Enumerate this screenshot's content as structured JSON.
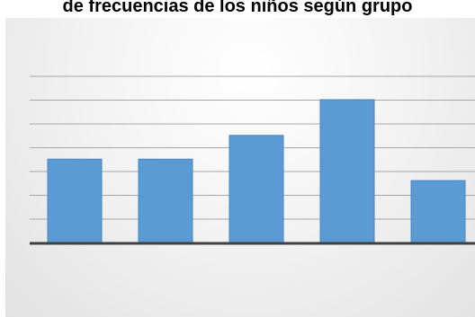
{
  "chart_data": {
    "type": "bar",
    "title": "de frecuencias de los niños según grupo",
    "categories": [
      "",
      "",
      "",
      "",
      ""
    ],
    "values": [
      3.5,
      3.5,
      4.5,
      6.0,
      2.6
    ],
    "ylim": [
      0,
      7
    ],
    "grid": true,
    "colors": {
      "bar": "#5b9bd5",
      "bar_edge": "#4a86c0",
      "gridline": "#a6a6a6",
      "baseline": "#404040"
    }
  }
}
